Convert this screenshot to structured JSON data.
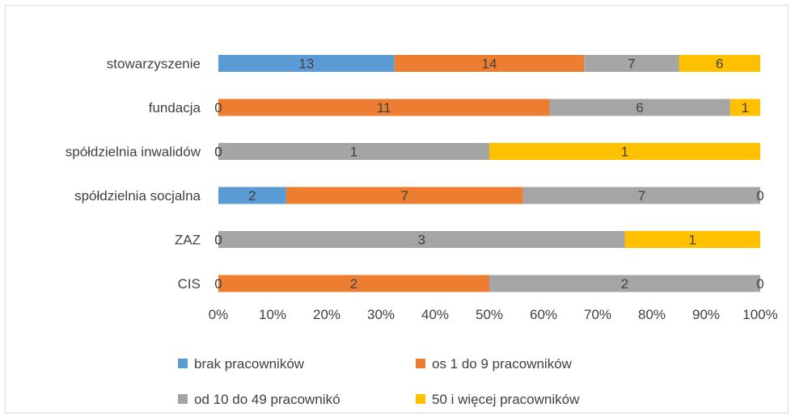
{
  "chart_data": {
    "type": "bar",
    "orientation": "horizontal",
    "stacked": "percent",
    "categories": [
      "stowarzyszenie",
      "fundacja",
      "spółdzielnia inwalidów",
      "spółdzielnia socjalna",
      "ZAZ",
      "CIS"
    ],
    "series": [
      {
        "name": "brak pracowników",
        "color": "#5b9bd5",
        "values": [
          13,
          0,
          0,
          2,
          0,
          0
        ]
      },
      {
        "name": "os 1 do 9 pracowników",
        "color": "#ed7d31",
        "values": [
          14,
          11,
          0,
          7,
          0,
          2
        ]
      },
      {
        "name": "od 10 do 49 pracownikó",
        "color": "#a5a5a5",
        "values": [
          7,
          6,
          1,
          7,
          3,
          2
        ]
      },
      {
        "name": "50 i więcej pracowników",
        "color": "#ffc000",
        "values": [
          6,
          1,
          1,
          0,
          1,
          0
        ]
      }
    ],
    "x_ticks": [
      "0%",
      "10%",
      "20%",
      "30%",
      "40%",
      "50%",
      "60%",
      "70%",
      "80%",
      "90%",
      "100%"
    ],
    "xlim": [
      0,
      100
    ],
    "legend_position": "bottom",
    "grid": false
  }
}
